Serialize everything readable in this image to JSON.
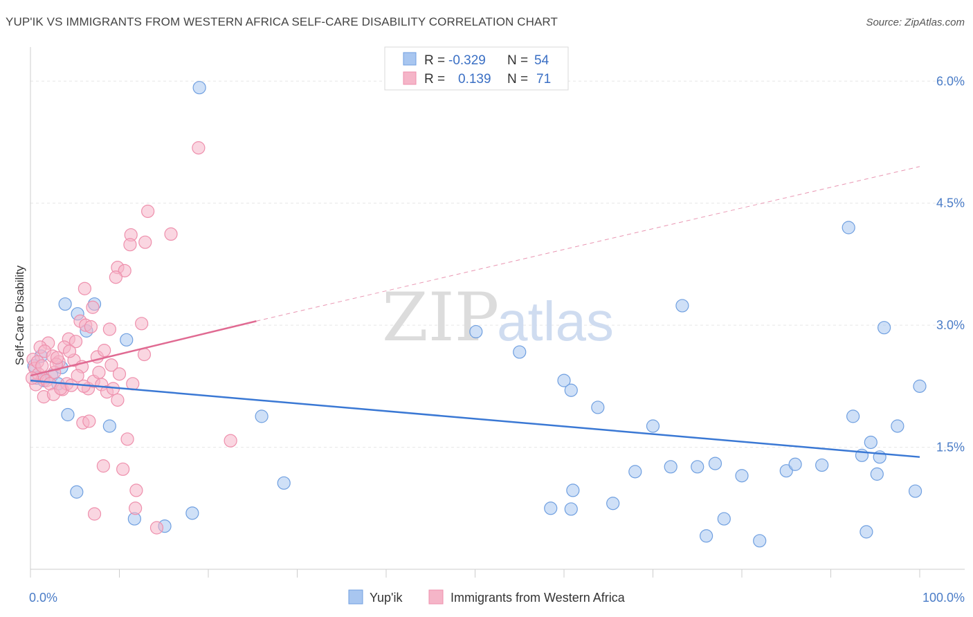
{
  "header": {
    "title": "YUP'IK VS IMMIGRANTS FROM WESTERN AFRICA SELF-CARE DISABILITY CORRELATION CHART",
    "source": "Source: ZipAtlas.com"
  },
  "watermark": {
    "zip": "ZIP",
    "atlas": "atlas"
  },
  "chart_data": {
    "type": "scatter",
    "xlabel": "",
    "ylabel": "Self-Care Disability",
    "xlim": [
      0,
      100
    ],
    "ylim": [
      0.0,
      6.3
    ],
    "x_tick_labels": [
      {
        "value": 0,
        "label": "0.0%"
      },
      {
        "value": 100,
        "label": "100.0%"
      }
    ],
    "y_tick_labels": [
      {
        "value": 1.5,
        "label": "1.5%"
      },
      {
        "value": 3.0,
        "label": "3.0%"
      },
      {
        "value": 4.5,
        "label": "4.5%"
      },
      {
        "value": 6.0,
        "label": "6.0%"
      }
    ],
    "grid": {
      "horizontal": true,
      "style": "dashed",
      "color": "#e6e6e6"
    },
    "legend_position": "top-center",
    "stats_legend": [
      {
        "r_label": "R = ",
        "r_value": "-0.329",
        "n_label": "N = ",
        "n_value": "54",
        "color": "#a8c6f0"
      },
      {
        "r_label": "R = ",
        "r_value": "0.139",
        "n_label": "N = ",
        "n_value": "71",
        "color": "#f5b5c8"
      }
    ],
    "series": [
      {
        "name": "Yup'ik",
        "fill": "#a8c6f0",
        "stroke": "#6f9fe0",
        "line_color": "#3a78d4",
        "trend": {
          "x0": 0,
          "y0": 2.32,
          "x1": 100,
          "y1": 1.38,
          "dashed_to": null
        },
        "points": [
          [
            19,
            5.92
          ],
          [
            1.2,
            2.62
          ],
          [
            0.4,
            2.5
          ],
          [
            0.7,
            2.35
          ],
          [
            1.5,
            2.32
          ],
          [
            2.4,
            2.38
          ],
          [
            3.1,
            2.28
          ],
          [
            3.5,
            2.48
          ],
          [
            3.9,
            3.26
          ],
          [
            5.3,
            3.14
          ],
          [
            6.3,
            2.93
          ],
          [
            7.2,
            3.26
          ],
          [
            10.8,
            2.82
          ],
          [
            4.2,
            1.9
          ],
          [
            8.9,
            1.76
          ],
          [
            5.2,
            0.95
          ],
          [
            11.7,
            0.62
          ],
          [
            15.1,
            0.53
          ],
          [
            18.2,
            0.69
          ],
          [
            26.0,
            1.88
          ],
          [
            28.5,
            1.06
          ],
          [
            50.1,
            2.92
          ],
          [
            55.0,
            2.67
          ],
          [
            60.0,
            2.32
          ],
          [
            60.8,
            2.2
          ],
          [
            63.8,
            1.99
          ],
          [
            70.0,
            1.76
          ],
          [
            68.0,
            1.2
          ],
          [
            72.0,
            1.26
          ],
          [
            73.3,
            3.24
          ],
          [
            75.0,
            1.26
          ],
          [
            77.0,
            1.3
          ],
          [
            80.0,
            1.15
          ],
          [
            78.0,
            0.62
          ],
          [
            82.0,
            0.35
          ],
          [
            76.0,
            0.41
          ],
          [
            85.0,
            1.21
          ],
          [
            86.0,
            1.29
          ],
          [
            89.0,
            1.28
          ],
          [
            92.0,
            4.2
          ],
          [
            92.5,
            1.88
          ],
          [
            93.5,
            1.4
          ],
          [
            94.5,
            1.56
          ],
          [
            95.2,
            1.17
          ],
          [
            96.0,
            2.97
          ],
          [
            97.5,
            1.76
          ],
          [
            99.5,
            0.96
          ],
          [
            100,
            2.25
          ],
          [
            94.0,
            0.46
          ],
          [
            60.8,
            0.74
          ],
          [
            58.5,
            0.75
          ],
          [
            61.0,
            0.97
          ],
          [
            65.5,
            0.81
          ],
          [
            95.5,
            1.38
          ]
        ]
      },
      {
        "name": "Immigrants from Western Africa",
        "fill": "#f5b5c8",
        "stroke": "#ee8fac",
        "line_color": "#e06a92",
        "trend": {
          "x0": 0,
          "y0": 2.38,
          "x1": 25.4,
          "y1": 3.05,
          "dashed_to": {
            "x": 100,
            "y": 4.95
          }
        },
        "points": [
          [
            18.9,
            5.18
          ],
          [
            13.2,
            4.4
          ],
          [
            15.8,
            4.12
          ],
          [
            11.3,
            4.11
          ],
          [
            12.9,
            4.02
          ],
          [
            11.2,
            3.99
          ],
          [
            9.8,
            3.71
          ],
          [
            10.6,
            3.67
          ],
          [
            9.6,
            3.59
          ],
          [
            6.1,
            3.45
          ],
          [
            7.0,
            3.22
          ],
          [
            12.5,
            3.02
          ],
          [
            5.6,
            3.05
          ],
          [
            6.2,
            3.0
          ],
          [
            6.8,
            2.98
          ],
          [
            8.9,
            2.95
          ],
          [
            4.3,
            2.83
          ],
          [
            5.1,
            2.8
          ],
          [
            3.8,
            2.73
          ],
          [
            2.0,
            2.78
          ],
          [
            1.1,
            2.73
          ],
          [
            1.6,
            2.68
          ],
          [
            2.5,
            2.62
          ],
          [
            3.2,
            2.55
          ],
          [
            4.9,
            2.57
          ],
          [
            5.8,
            2.49
          ],
          [
            7.5,
            2.61
          ],
          [
            8.3,
            2.69
          ],
          [
            9.1,
            2.51
          ],
          [
            12.8,
            2.64
          ],
          [
            0.3,
            2.58
          ],
          [
            0.5,
            2.47
          ],
          [
            0.9,
            2.4
          ],
          [
            1.4,
            2.35
          ],
          [
            1.8,
            2.32
          ],
          [
            2.2,
            2.28
          ],
          [
            0.6,
            2.27
          ],
          [
            2.7,
            2.42
          ],
          [
            3.6,
            2.21
          ],
          [
            4.1,
            2.28
          ],
          [
            6.5,
            2.22
          ],
          [
            7.1,
            2.31
          ],
          [
            8.0,
            2.27
          ],
          [
            8.6,
            2.18
          ],
          [
            9.3,
            2.22
          ],
          [
            9.8,
            2.08
          ],
          [
            11.5,
            2.28
          ],
          [
            10.0,
            2.4
          ],
          [
            1.5,
            2.12
          ],
          [
            2.6,
            2.15
          ],
          [
            3.4,
            2.22
          ],
          [
            5.9,
            1.8
          ],
          [
            6.6,
            1.82
          ],
          [
            10.9,
            1.6
          ],
          [
            22.5,
            1.58
          ],
          [
            8.2,
            1.27
          ],
          [
            10.4,
            1.23
          ],
          [
            11.9,
            0.97
          ],
          [
            11.8,
            0.75
          ],
          [
            7.2,
            0.68
          ],
          [
            14.2,
            0.51
          ],
          [
            0.2,
            2.35
          ],
          [
            0.8,
            2.55
          ],
          [
            1.3,
            2.5
          ],
          [
            2.9,
            2.52
          ],
          [
            4.6,
            2.26
          ],
          [
            5.3,
            2.38
          ],
          [
            6.0,
            2.25
          ],
          [
            7.7,
            2.42
          ],
          [
            3.0,
            2.6
          ],
          [
            4.4,
            2.68
          ]
        ]
      }
    ]
  }
}
